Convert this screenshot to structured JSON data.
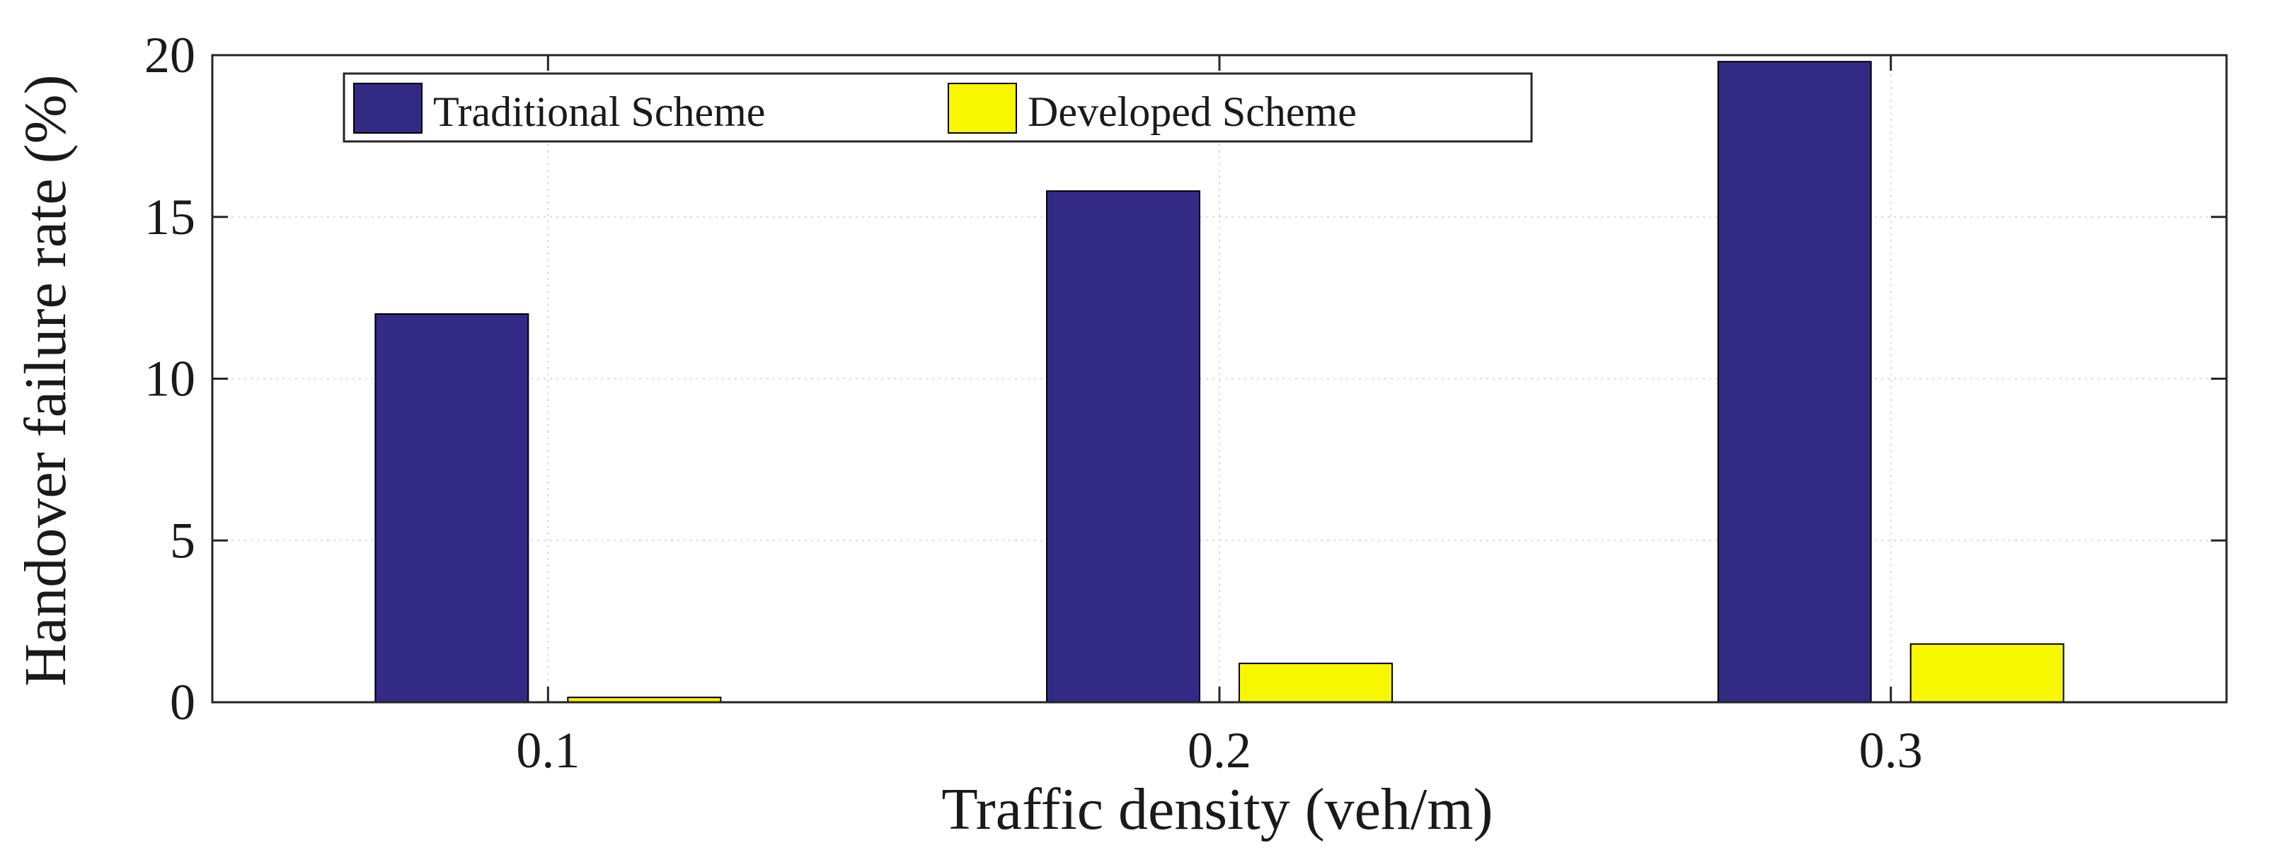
{
  "chart_data": {
    "type": "bar",
    "categories": [
      "0.1",
      "0.2",
      "0.3"
    ],
    "series": [
      {
        "name": "Traditional Scheme",
        "values": [
          12.0,
          15.8,
          19.8
        ],
        "color": "#332a85"
      },
      {
        "name": "Developed Scheme",
        "values": [
          0.15,
          1.2,
          1.8
        ],
        "color": "#f7f700"
      }
    ],
    "title": "",
    "xlabel": "Traffic density (veh/m)",
    "ylabel": "Handover failure rate (%)",
    "ylim": [
      0,
      20
    ],
    "yticks": [
      "0",
      "5",
      "10",
      "15",
      "20"
    ],
    "grid": true,
    "legend": "top-left"
  }
}
